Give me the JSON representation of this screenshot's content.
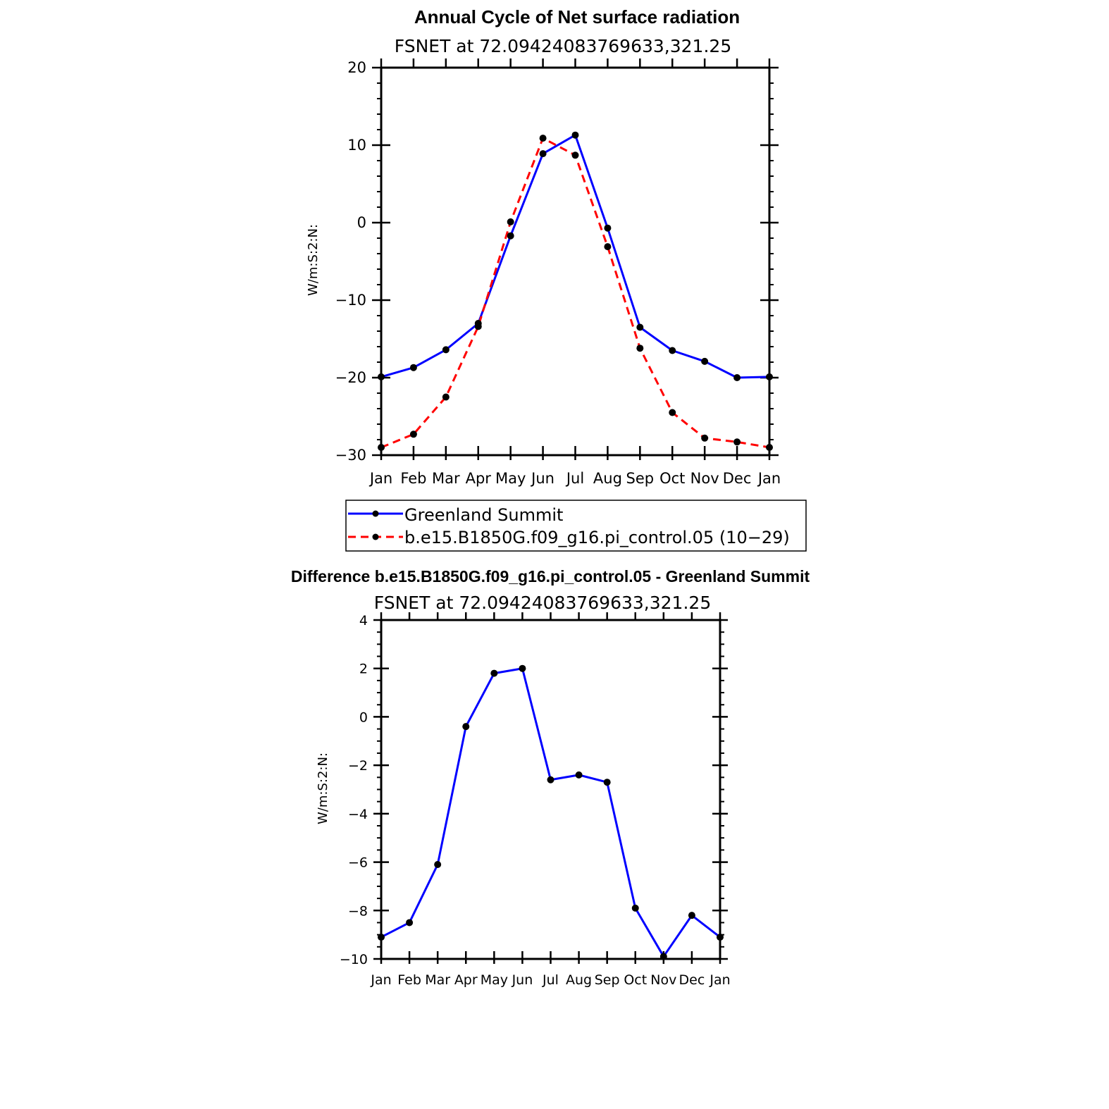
{
  "chart_data": [
    {
      "type": "line",
      "title": "Annual Cycle of Net surface radiation",
      "subtitle": "FSNET at 72.09424083769633,321.25",
      "ylabel": "W/m:S:2:N:",
      "ylim": [
        -30,
        20
      ],
      "yticks": [
        "20",
        "10",
        "0",
        "−10",
        "−20",
        "−30"
      ],
      "ytick_values": [
        20,
        10,
        0,
        -10,
        -20,
        -30
      ],
      "categories": [
        "Jan",
        "Feb",
        "Mar",
        "Apr",
        "May",
        "Jun",
        "Jul",
        "Aug",
        "Sep",
        "Oct",
        "Nov",
        "Dec",
        "Jan"
      ],
      "legend": "bottom",
      "series": [
        {
          "name": "Greenland Summit",
          "color": "#0000ff",
          "dash": "solid",
          "values": [
            -19.9,
            -18.7,
            -16.4,
            -13.0,
            -1.7,
            8.9,
            11.3,
            -0.7,
            -13.5,
            -16.5,
            -17.9,
            -20.0,
            -19.9
          ]
        },
        {
          "name": "b.e15.B1850G.f09_g16.pi_control.05 (10−29)",
          "color": "#ff0000",
          "dash": "dashed",
          "values": [
            -29.0,
            -27.3,
            -22.5,
            -13.4,
            0.1,
            10.9,
            8.7,
            -3.1,
            -16.2,
            -24.5,
            -27.8,
            -28.3,
            -29.0
          ]
        }
      ]
    },
    {
      "type": "line",
      "title": "Difference b.e15.B1850G.f09_g16.pi_control.05 - Greenland Summit",
      "subtitle": "FSNET at 72.09424083769633,321.25",
      "ylabel": "W/m:S:2:N:",
      "ylim": [
        -10,
        4
      ],
      "yticks": [
        "4",
        "2",
        "0",
        "−2",
        "−4",
        "−6",
        "−8",
        "−10"
      ],
      "ytick_values": [
        4,
        2,
        0,
        -2,
        -4,
        -6,
        -8,
        -10
      ],
      "categories": [
        "Jan",
        "Feb",
        "Mar",
        "Apr",
        "May",
        "Jun",
        "Jul",
        "Aug",
        "Sep",
        "Oct",
        "Nov",
        "Dec",
        "Jan"
      ],
      "series": [
        {
          "color": "#0000ff",
          "dash": "solid",
          "values": [
            -9.1,
            -8.5,
            -6.1,
            -0.4,
            1.8,
            2.0,
            -2.6,
            -2.4,
            -2.7,
            -7.9,
            -9.9,
            -8.2,
            -9.1
          ]
        }
      ]
    }
  ]
}
